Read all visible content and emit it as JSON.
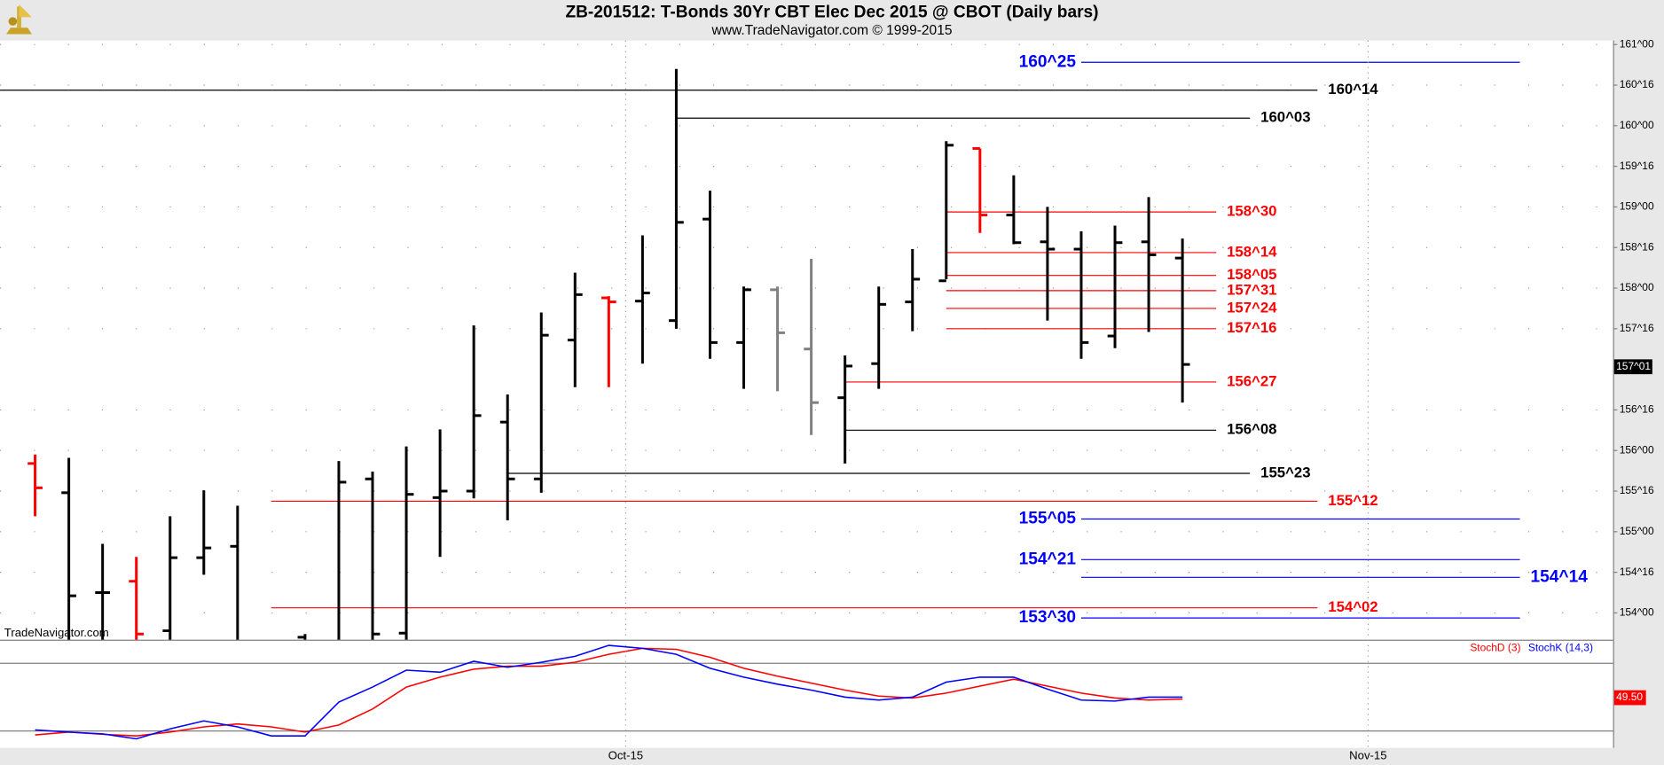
{
  "chart_data": [
    {
      "type": "ohlc",
      "title": "ZB-201512:  T-Bonds 30Yr CBT Elec Dec 2015 @ CBOT  (Daily bars)",
      "subtitle": "www.TradeNavigator.com © 1999-2015",
      "watermark": "TradeNavigator.com",
      "x": [
        0,
        1,
        2,
        3,
        4,
        5,
        6,
        7,
        8,
        9,
        10,
        11,
        12,
        13,
        14,
        15,
        16,
        17,
        18,
        19,
        20,
        21,
        22,
        23,
        24,
        25,
        26,
        27,
        28,
        29,
        30,
        31,
        32,
        33,
        34
      ],
      "open": [
        155.84,
        155.48,
        154.25,
        154.39,
        153.78,
        154.68,
        154.82,
        null,
        153.7,
        153.6,
        155.65,
        153.75,
        155.42,
        155.5,
        156.35,
        155.65,
        157.36,
        157.88,
        157.84,
        157.6,
        158.85,
        157.33,
        157.98,
        157.25,
        156.65,
        157.07,
        157.83,
        158.09,
        159.72,
        158.9,
        158.57,
        158.48,
        157.41,
        158.57,
        158.37
      ],
      "high": [
        155.95,
        155.91,
        154.85,
        154.69,
        155.19,
        155.51,
        155.32,
        null,
        153.74,
        155.87,
        155.74,
        156.05,
        156.26,
        157.54,
        156.69,
        157.7,
        158.19,
        157.9,
        158.65,
        160.7,
        159.2,
        158.02,
        158.02,
        158.36,
        157.17,
        158.02,
        158.48,
        159.81,
        159.72,
        159.39,
        159.0,
        158.7,
        158.77,
        159.12,
        158.61
      ],
      "low": [
        155.19,
        153.6,
        153.6,
        153.6,
        153.6,
        154.47,
        153.6,
        null,
        153.6,
        153.6,
        153.6,
        153.6,
        154.69,
        155.41,
        155.14,
        155.48,
        156.78,
        156.78,
        157.07,
        157.5,
        157.13,
        156.76,
        156.73,
        156.19,
        155.84,
        156.76,
        157.47,
        158.11,
        158.68,
        158.54,
        157.6,
        157.13,
        157.26,
        157.46,
        156.59
      ],
      "close": [
        155.54,
        154.21,
        154.25,
        153.74,
        154.68,
        154.8,
        153.62,
        null,
        153.65,
        155.61,
        153.74,
        155.46,
        155.5,
        156.43,
        155.65,
        157.42,
        157.92,
        157.83,
        157.94,
        158.81,
        157.33,
        157.98,
        157.45,
        156.59,
        157.04,
        157.8,
        158.11,
        159.76,
        158.9,
        158.56,
        158.48,
        157.33,
        158.56,
        158.41,
        157.06
      ],
      "colors": [
        "#ff0000",
        "#000000",
        "#000000",
        "#ff0000",
        "#000000",
        "#000000",
        "#000000",
        "#000000",
        "#000000",
        "#000000",
        "#000000",
        "#000000",
        "#000000",
        "#000000",
        "#000000",
        "#000000",
        "#000000",
        "#ff0000",
        "#000000",
        "#000000",
        "#000000",
        "#000000",
        "#808080",
        "#808080",
        "#000000",
        "#000000",
        "#000000",
        "#000000",
        "#ff0000",
        "#000000",
        "#000000",
        "#000000",
        "#000000",
        "#000000",
        "#000000"
      ],
      "xlim": [
        -1.04,
        46.76
      ],
      "ylim": [
        153.67,
        161.05
      ],
      "yticks": [
        {
          "value": 161,
          "label": "161^00"
        },
        {
          "value": 160.5,
          "label": "160^16"
        },
        {
          "value": 160,
          "label": "160^00"
        },
        {
          "value": 159.5,
          "label": "159^16"
        },
        {
          "value": 159,
          "label": "159^00"
        },
        {
          "value": 158.5,
          "label": "158^16"
        },
        {
          "value": 158,
          "label": "158^00"
        },
        {
          "value": 157.5,
          "label": "157^16"
        },
        {
          "value": 156.5,
          "label": "156^16"
        },
        {
          "value": 156,
          "label": "156^00"
        },
        {
          "value": 155.5,
          "label": "155^16"
        },
        {
          "value": 155,
          "label": "155^00"
        },
        {
          "value": 154.5,
          "label": "154^16"
        },
        {
          "value": 154,
          "label": "154^00"
        }
      ],
      "grid": true,
      "last": {
        "value": 157.03125,
        "label": "157^01",
        "color": "#000000"
      },
      "levels": [
        {
          "label": "160^25",
          "value": 160.78125,
          "color": "#0000ff",
          "x0": 31,
          "x1": 44,
          "label_side": "left"
        },
        {
          "label": "160^14",
          "value": 160.4375,
          "color": "#000000",
          "x0": -1.04,
          "x1": 38,
          "label_side": "right"
        },
        {
          "label": "160^03",
          "value": 160.09375,
          "color": "#000000",
          "x0": 19,
          "x1": 36,
          "label_side": "right"
        },
        {
          "label": "158^30",
          "value": 158.9375,
          "color": "#ff0000",
          "x0": 27,
          "x1": 35,
          "label_side": "right"
        },
        {
          "label": "158^14",
          "value": 158.4375,
          "color": "#ff0000",
          "x0": 27,
          "x1": 35,
          "label_side": "right"
        },
        {
          "label": "158^05",
          "value": 158.15625,
          "color": "#ff0000",
          "x0": 27,
          "x1": 35,
          "label_side": "right"
        },
        {
          "label": "157^31",
          "value": 157.96875,
          "color": "#ff0000",
          "x0": 27,
          "x1": 35,
          "label_side": "right"
        },
        {
          "label": "157^24",
          "value": 157.75,
          "color": "#ff0000",
          "x0": 27,
          "x1": 35,
          "label_side": "right"
        },
        {
          "label": "157^16",
          "value": 157.5,
          "color": "#ff0000",
          "x0": 27,
          "x1": 35,
          "label_side": "right"
        },
        {
          "label": "156^27",
          "value": 156.84375,
          "color": "#ff0000",
          "x0": 24,
          "x1": 35,
          "label_side": "right"
        },
        {
          "label": "156^08",
          "value": 156.25,
          "color": "#000000",
          "x0": 24,
          "x1": 35,
          "label_side": "right"
        },
        {
          "label": "155^23",
          "value": 155.71875,
          "color": "#000000",
          "x0": 14,
          "x1": 36,
          "label_side": "right"
        },
        {
          "label": "155^12",
          "value": 155.375,
          "color": "#ff0000",
          "x0": 7,
          "x1": 38,
          "label_side": "right"
        },
        {
          "label": "155^05",
          "value": 155.15625,
          "color": "#0000ff",
          "x0": 31,
          "x1": 44,
          "label_side": "left"
        },
        {
          "label": "154^21",
          "value": 154.65625,
          "color": "#0000ff",
          "x0": 31,
          "x1": 44,
          "label_side": "left"
        },
        {
          "label": "154^14",
          "value": 154.4375,
          "color": "#0000ff",
          "x0": 31,
          "x1": 44,
          "label_side": "right"
        },
        {
          "label": "154^02",
          "value": 154.0625,
          "color": "#ff0000",
          "x0": 7,
          "x1": 38,
          "label_side": "right"
        },
        {
          "label": "153^30",
          "value": 153.9375,
          "color": "#0000ff",
          "x0": 31,
          "x1": 44,
          "label_side": "left"
        }
      ]
    },
    {
      "type": "line",
      "x": [
        0,
        1,
        2,
        3,
        4,
        5,
        6,
        7,
        8,
        9,
        10,
        11,
        12,
        13,
        14,
        15,
        16,
        17,
        18,
        19,
        20,
        21,
        22,
        23,
        24,
        25,
        26,
        27,
        28,
        29,
        30,
        31,
        32,
        33,
        34
      ],
      "xlim": [
        -1.04,
        46.76
      ],
      "xticks": [
        {
          "value": 17.5,
          "label": "Oct-15"
        },
        {
          "value": 39.5,
          "label": "Nov-15"
        }
      ],
      "ylim": [
        5,
        100
      ],
      "hlines": [
        80,
        20
      ],
      "series": [
        {
          "name": "StochD (3)",
          "color": "#ff0000",
          "values": [
            16.5,
            19,
            17,
            15.6,
            19,
            23.6,
            26.2,
            23.6,
            19,
            25.3,
            39.5,
            58.9,
            67.7,
            74.8,
            77.4,
            77.4,
            80.9,
            88,
            93.3,
            92.4,
            85.3,
            75.6,
            68.6,
            62.4,
            56.2,
            50.9,
            49.2,
            53.6,
            59.8,
            65.9,
            59.8,
            53.6,
            49.2,
            47.4,
            48.3
          ]
        },
        {
          "name": "StochK (14,3)",
          "color": "#0000ff",
          "values": [
            20.9,
            19,
            17.4,
            13,
            21.8,
            28.9,
            23.6,
            15.6,
            15.6,
            45.6,
            58.9,
            73.9,
            72.1,
            81.8,
            76.5,
            80.9,
            86.2,
            95.9,
            93.3,
            88,
            75.6,
            67.7,
            61.5,
            56.2,
            50,
            47.4,
            50,
            63.3,
            67.7,
            67.7,
            57.1,
            47.4,
            46.5,
            50,
            50
          ]
        }
      ],
      "last": {
        "value": 49.5,
        "label": "49.50",
        "color": "#ff0000"
      }
    }
  ]
}
